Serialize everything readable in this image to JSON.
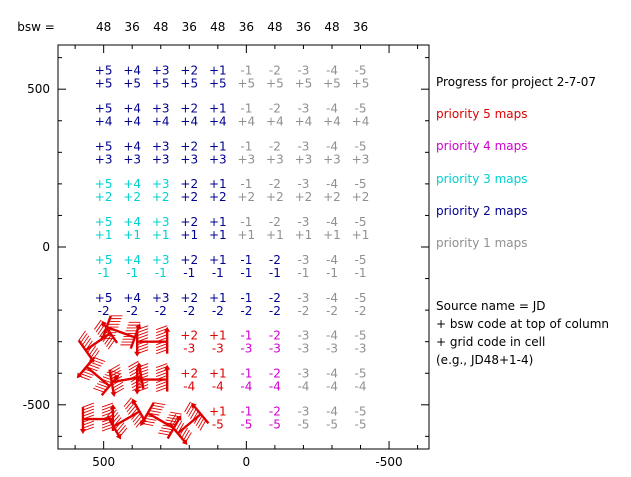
{
  "chart_data": {
    "type": "table",
    "top_axis_label": "bsw =",
    "bsw_codes": [
      "48",
      "36",
      "48",
      "36",
      "48",
      "36",
      "48",
      "36",
      "48",
      "36"
    ],
    "x_ticks": [
      {
        "value": 500,
        "label": "500"
      },
      {
        "value": 0,
        "label": "0"
      },
      {
        "value": -500,
        "label": "-500"
      }
    ],
    "y_ticks": [
      {
        "value": 500,
        "label": "500"
      },
      {
        "value": 0,
        "label": "0"
      },
      {
        "value": -500,
        "label": "-500"
      }
    ],
    "xlim": [
      660,
      -640
    ],
    "ylim": [
      -640,
      640
    ],
    "x_reversed": true,
    "cell_x_centers": [
      500,
      400,
      300,
      200,
      100,
      0,
      -100,
      -200,
      -300,
      -400
    ],
    "cell_y_centers": [
      540,
      420,
      300,
      180,
      60,
      -60,
      -180,
      -300,
      -420,
      -540
    ],
    "column_codes": [
      "+5",
      "+4",
      "+3",
      "+2",
      "+1",
      "-1",
      "-2",
      "-3",
      "-4",
      "-5"
    ],
    "row_codes": [
      "+5",
      "+4",
      "+3",
      "+2",
      "+1",
      "-1",
      "-2",
      "-3",
      "-4",
      "-5"
    ],
    "priority_colors": {
      "5": "#e00000",
      "4": "#d000d0",
      "3": "#00d0d0",
      "2": "#000090",
      "1": "#909090"
    },
    "priority_grid": [
      [
        2,
        2,
        2,
        2,
        2,
        1,
        1,
        1,
        1,
        1
      ],
      [
        2,
        2,
        2,
        2,
        2,
        1,
        1,
        1,
        1,
        1
      ],
      [
        2,
        2,
        2,
        2,
        2,
        1,
        1,
        1,
        1,
        1
      ],
      [
        3,
        3,
        3,
        2,
        2,
        1,
        1,
        1,
        1,
        1
      ],
      [
        3,
        3,
        3,
        2,
        2,
        1,
        1,
        1,
        1,
        1
      ],
      [
        3,
        3,
        3,
        2,
        2,
        2,
        2,
        1,
        1,
        1
      ],
      [
        2,
        2,
        2,
        2,
        2,
        2,
        2,
        1,
        1,
        1
      ],
      [
        0,
        0,
        0,
        5,
        5,
        4,
        4,
        1,
        1,
        1
      ],
      [
        0,
        0,
        0,
        5,
        5,
        4,
        4,
        1,
        1,
        1
      ],
      [
        0,
        0,
        0,
        0,
        5,
        4,
        4,
        1,
        1,
        1
      ]
    ],
    "legend": [
      {
        "label": "Progress for project 2-7-07",
        "color": "#000000"
      },
      {
        "label": "priority 5 maps",
        "color": "#e00000"
      },
      {
        "label": "priority 4 maps",
        "color": "#d000d0"
      },
      {
        "label": "priority 3 maps",
        "color": "#00d0d0"
      },
      {
        "label": "priority 2 maps",
        "color": "#000090"
      },
      {
        "label": "priority 1 maps",
        "color": "#909090"
      }
    ],
    "note": [
      "Source name = JD",
      "+ bsw code at top of column",
      "+ grid code in cell",
      "(e.g., JD48+1-4)"
    ],
    "scan_markers": [
      {
        "x": 520,
        "y": -300,
        "angle": -35,
        "color": "#e00000"
      },
      {
        "x": 440,
        "y": -270,
        "angle": 20,
        "color": "#e00000"
      },
      {
        "x": 330,
        "y": -300,
        "angle": 0,
        "color": "#e00000"
      },
      {
        "x": 520,
        "y": -410,
        "angle": 40,
        "color": "#e00000"
      },
      {
        "x": 420,
        "y": -420,
        "angle": -10,
        "color": "#e00000"
      },
      {
        "x": 330,
        "y": -420,
        "angle": 0,
        "color": "#e00000"
      },
      {
        "x": 520,
        "y": -545,
        "angle": 0,
        "color": "#e00000"
      },
      {
        "x": 420,
        "y": -545,
        "angle": -30,
        "color": "#e00000"
      },
      {
        "x": 300,
        "y": -550,
        "angle": 30,
        "color": "#e00000"
      },
      {
        "x": 200,
        "y": -560,
        "angle": -40,
        "color": "#e00000"
      }
    ]
  }
}
